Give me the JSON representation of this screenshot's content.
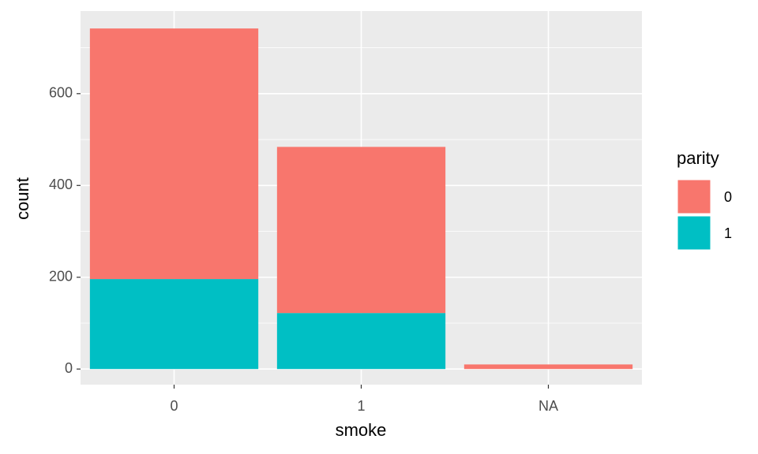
{
  "chart_data": {
    "type": "stacked_bar",
    "x_label": "smoke",
    "y_label": "count",
    "categories": [
      "0",
      "1",
      "NA"
    ],
    "series": [
      {
        "name": "0",
        "color": "#F8766D",
        "values": [
          546,
          362,
          10
        ]
      },
      {
        "name": "1",
        "color": "#00BFC4",
        "values": [
          196,
          122,
          null
        ]
      }
    ],
    "legend_title": "parity",
    "legend_position": "right",
    "ylim": [
      -34,
      780
    ],
    "yticks": [
      0,
      200,
      400,
      600
    ],
    "grid": true
  }
}
